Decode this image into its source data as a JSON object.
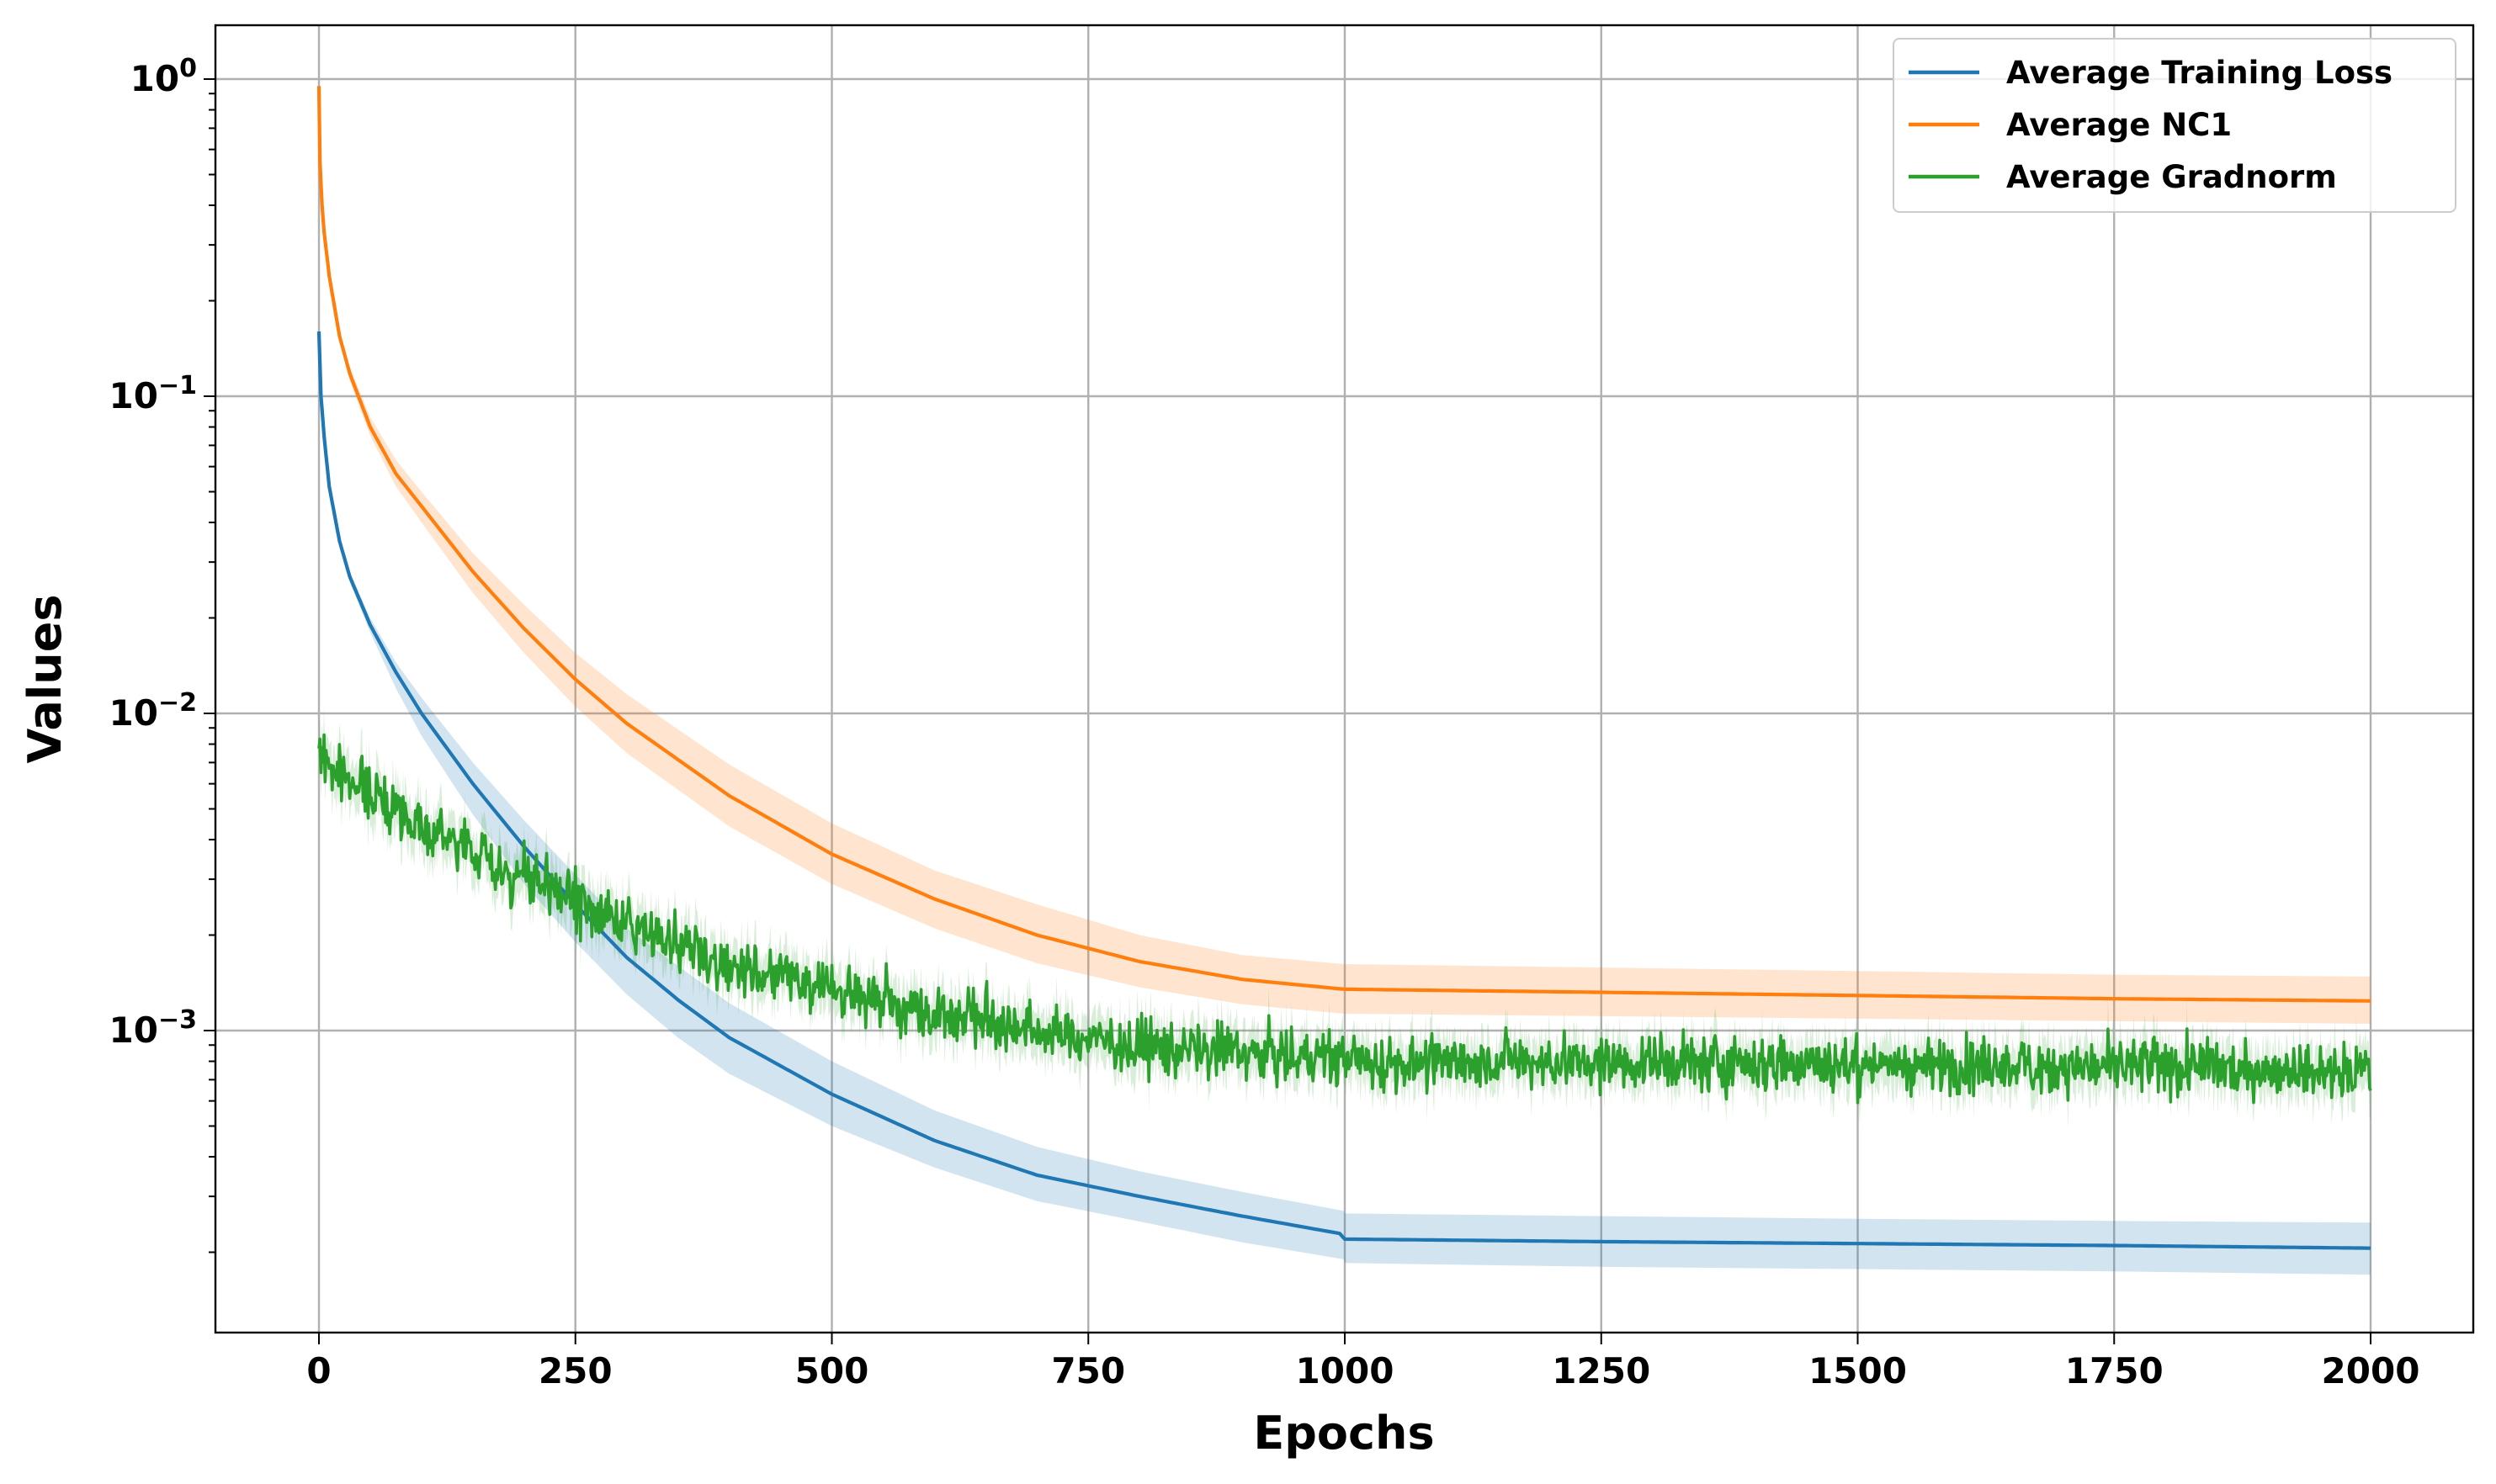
{
  "chart_data": {
    "type": "line",
    "xlabel": "Epochs",
    "ylabel": "Values",
    "xlim": [
      -100,
      2100
    ],
    "ylim": [
      0.0001,
      1.5
    ],
    "yscale": "log",
    "grid": true,
    "legend_position": "upper right",
    "x_ticks": [
      0,
      250,
      500,
      750,
      1000,
      1250,
      1500,
      1750,
      2000
    ],
    "x_tick_labels": [
      "0",
      "250",
      "500",
      "750",
      "1000",
      "1250",
      "1500",
      "1750",
      "2000"
    ],
    "y_ticks": [
      1,
      0.1,
      0.01,
      0.001
    ],
    "y_tick_labels": [
      {
        "base": "10",
        "exp": "0"
      },
      {
        "base": "10",
        "exp": "−1"
      },
      {
        "base": "10",
        "exp": "−2"
      },
      {
        "base": "10",
        "exp": "−3"
      }
    ],
    "series": [
      {
        "name": "Average Training Loss",
        "color": "#1f77b4",
        "band_color": "#1f77b4",
        "x": [
          0,
          2,
          5,
          10,
          20,
          30,
          50,
          75,
          100,
          150,
          200,
          250,
          300,
          350,
          400,
          500,
          600,
          700,
          800,
          900,
          999,
          1000,
          1250,
          1500,
          1750,
          2000
        ],
        "y": [
          0.16,
          0.1,
          0.075,
          0.052,
          0.035,
          0.027,
          0.019,
          0.0135,
          0.01,
          0.006,
          0.0038,
          0.0025,
          0.0017,
          0.00125,
          0.00095,
          0.00063,
          0.00045,
          0.00035,
          0.0003,
          0.00026,
          0.000228,
          0.00022,
          0.000216,
          0.000213,
          0.00021,
          0.000206
        ],
        "lower": [
          0.16,
          0.1,
          0.075,
          0.052,
          0.035,
          0.026,
          0.018,
          0.012,
          0.0085,
          0.0048,
          0.0029,
          0.0019,
          0.0013,
          0.00095,
          0.00073,
          0.0005,
          0.00037,
          0.00029,
          0.00025,
          0.000215,
          0.00019,
          0.000185,
          0.00018,
          0.000177,
          0.000174,
          0.00017
        ],
        "upper": [
          0.16,
          0.1,
          0.075,
          0.052,
          0.035,
          0.028,
          0.02,
          0.0145,
          0.0112,
          0.007,
          0.0046,
          0.0031,
          0.0021,
          0.0016,
          0.00122,
          0.0008,
          0.00056,
          0.00043,
          0.00036,
          0.00031,
          0.00027,
          0.000265,
          0.00026,
          0.000255,
          0.000251,
          0.000248
        ]
      },
      {
        "name": "Average NC1",
        "color": "#ff7f0e",
        "band_color": "#ff7f0e",
        "x": [
          0,
          1,
          3,
          5,
          10,
          20,
          30,
          50,
          75,
          100,
          150,
          200,
          250,
          300,
          400,
          500,
          600,
          700,
          800,
          900,
          999,
          1000,
          1250,
          1500,
          1750,
          2000
        ],
        "y": [
          0.95,
          0.55,
          0.4,
          0.33,
          0.24,
          0.155,
          0.118,
          0.08,
          0.057,
          0.045,
          0.028,
          0.0185,
          0.0128,
          0.0093,
          0.0055,
          0.0036,
          0.0026,
          0.002,
          0.00165,
          0.00145,
          0.00135,
          0.00135,
          0.00132,
          0.00129,
          0.00126,
          0.00124
        ],
        "lower": [
          0.95,
          0.55,
          0.4,
          0.33,
          0.24,
          0.15,
          0.112,
          0.075,
          0.052,
          0.04,
          0.024,
          0.0155,
          0.0105,
          0.0075,
          0.0044,
          0.0029,
          0.0021,
          0.00163,
          0.00137,
          0.00121,
          0.00113,
          0.00113,
          0.00111,
          0.00109,
          0.00107,
          0.00105
        ],
        "upper": [
          0.95,
          0.55,
          0.4,
          0.33,
          0.24,
          0.16,
          0.124,
          0.086,
          0.063,
          0.05,
          0.032,
          0.022,
          0.0155,
          0.0115,
          0.0069,
          0.0045,
          0.0032,
          0.0025,
          0.002,
          0.00173,
          0.00162,
          0.00162,
          0.00158,
          0.00154,
          0.0015,
          0.00148
        ]
      },
      {
        "name": "Average Gradnorm",
        "color": "#2ca02c",
        "band_color": "#2ca02c",
        "noisy": true,
        "x": [
          0,
          100,
          200,
          300,
          400,
          500,
          600,
          700,
          800,
          900,
          1000,
          1250,
          1500,
          1750,
          2000
        ],
        "y": [
          0.0072,
          0.0045,
          0.003,
          0.0022,
          0.0016,
          0.00135,
          0.00115,
          0.001,
          0.0009,
          0.00085,
          0.0008,
          0.00079,
          0.00078,
          0.00077,
          0.00075
        ]
      }
    ]
  }
}
